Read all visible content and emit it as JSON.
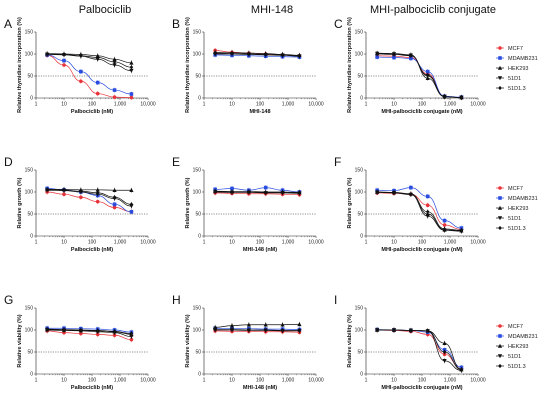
{
  "column_titles": [
    "Palbociclib",
    "MHI-148",
    "MHI-palbociclib conjugate"
  ],
  "legend": [
    {
      "label": "MCF7",
      "color": "#e8333a",
      "marker": "circle"
    },
    {
      "label": "MDAMB231",
      "color": "#2a4de0",
      "marker": "square"
    },
    {
      "label": "HEK293",
      "color": "#111111",
      "marker": "triangle-up"
    },
    {
      "label": "51D1",
      "color": "#111111",
      "marker": "triangle-down"
    },
    {
      "label": "51D1.3",
      "color": "#111111",
      "marker": "diamond"
    }
  ],
  "chart_data": [
    {
      "panel": "A",
      "type": "line",
      "xlabel": "Palbociclib (nM)",
      "ylabel": "Relative thymidine incorporation (%)",
      "xscale": "log",
      "xlim": [
        1,
        10000
      ],
      "ylim": [
        0,
        150
      ],
      "xticks": [
        "1",
        "10",
        "100",
        "1,000",
        "10,000"
      ],
      "yticks": [
        "0",
        "50",
        "100",
        "150"
      ],
      "reference_line": 50,
      "x": [
        2.5,
        10,
        40,
        160,
        640,
        2560
      ],
      "series": [
        {
          "name": "MCF7",
          "values": [
            97,
            75,
            38,
            10,
            2,
            1
          ]
        },
        {
          "name": "MDAMB231",
          "values": [
            98,
            85,
            60,
            35,
            18,
            9
          ]
        },
        {
          "name": "HEK293",
          "values": [
            101,
            100,
            99,
            96,
            88,
            80
          ]
        },
        {
          "name": "51D1",
          "values": [
            99,
            98,
            95,
            88,
            75,
            62
          ]
        },
        {
          "name": "51D1.3",
          "values": [
            100,
            99,
            96,
            92,
            82,
            70
          ]
        }
      ]
    },
    {
      "panel": "B",
      "type": "line",
      "xlabel": "MHI-148",
      "ylabel": "Relative thymidine incorporation (%)",
      "xscale": "log",
      "xlim": [
        1,
        10000
      ],
      "ylim": [
        0,
        150
      ],
      "xticks": [
        "1",
        "10",
        "100",
        "1,000",
        "10,000"
      ],
      "yticks": [
        "0",
        "50",
        "100",
        "150"
      ],
      "reference_line": 50,
      "x": [
        2.5,
        10,
        40,
        160,
        640,
        2560
      ],
      "series": [
        {
          "name": "MCF7",
          "values": [
            108,
            104,
            102,
            100,
            98,
            96
          ]
        },
        {
          "name": "MDAMB231",
          "values": [
            98,
            97,
            96,
            95,
            94,
            93
          ]
        },
        {
          "name": "HEK293",
          "values": [
            104,
            103,
            102,
            101,
            99,
            97
          ]
        },
        {
          "name": "51D1",
          "values": [
            100,
            100,
            99,
            98,
            97,
            95
          ]
        },
        {
          "name": "51D1.3",
          "values": [
            102,
            101,
            100,
            99,
            98,
            96
          ]
        }
      ]
    },
    {
      "panel": "C",
      "type": "line",
      "xlabel": "MHI-palbociclib conjugate (nM)",
      "ylabel": "Relative thymidine incorporation (%)",
      "xscale": "log",
      "xlim": [
        1,
        10000
      ],
      "ylim": [
        0,
        150
      ],
      "xticks": [
        "1",
        "10",
        "100",
        "1,000",
        "10,000"
      ],
      "yticks": [
        "0",
        "50",
        "100",
        "150"
      ],
      "reference_line": 50,
      "x": [
        2.5,
        10,
        40,
        160,
        640,
        2560
      ],
      "series": [
        {
          "name": "MCF7",
          "values": [
            96,
            95,
            92,
            55,
            3,
            1
          ]
        },
        {
          "name": "MDAMB231",
          "values": [
            93,
            92,
            90,
            60,
            4,
            2
          ]
        },
        {
          "name": "HEK293",
          "values": [
            102,
            101,
            98,
            45,
            3,
            1
          ]
        },
        {
          "name": "51D1",
          "values": [
            101,
            100,
            97,
            50,
            3,
            1
          ]
        },
        {
          "name": "51D1.3",
          "values": [
            100,
            99,
            96,
            52,
            3,
            1
          ]
        }
      ]
    },
    {
      "panel": "D",
      "type": "line",
      "xlabel": "Palbociclib (nM)",
      "ylabel": "Relative growth (%)",
      "xscale": "log",
      "xlim": [
        1,
        10000
      ],
      "ylim": [
        0,
        150
      ],
      "xticks": [
        "1",
        "10",
        "100",
        "1,000",
        "10,000"
      ],
      "yticks": [
        "0",
        "50",
        "100",
        "150"
      ],
      "reference_line": 50,
      "x": [
        2.5,
        10,
        40,
        160,
        640,
        2560
      ],
      "series": [
        {
          "name": "MCF7",
          "values": [
            100,
            95,
            88,
            78,
            65,
            55
          ]
        },
        {
          "name": "MDAMB231",
          "values": [
            108,
            105,
            100,
            92,
            72,
            55
          ]
        },
        {
          "name": "HEK293",
          "values": [
            106,
            106,
            105,
            105,
            104,
            104
          ]
        },
        {
          "name": "51D1",
          "values": [
            104,
            103,
            100,
            95,
            85,
            68
          ]
        },
        {
          "name": "51D1.3",
          "values": [
            105,
            104,
            102,
            98,
            88,
            72
          ]
        }
      ]
    },
    {
      "panel": "E",
      "type": "line",
      "xlabel": "MHI-148 (nM)",
      "ylabel": "Relative growth (%)",
      "xscale": "log",
      "xlim": [
        1,
        10000
      ],
      "ylim": [
        0,
        150
      ],
      "xticks": [
        "1",
        "10",
        "100",
        "1,000",
        "10,000"
      ],
      "yticks": [
        "0",
        "50",
        "100",
        "150"
      ],
      "reference_line": 50,
      "x": [
        2.5,
        10,
        40,
        160,
        640,
        2560
      ],
      "series": [
        {
          "name": "MCF7",
          "values": [
            98,
            97,
            96,
            96,
            95,
            94
          ]
        },
        {
          "name": "MDAMB231",
          "values": [
            106,
            108,
            104,
            110,
            104,
            100
          ]
        },
        {
          "name": "HEK293",
          "values": [
            102,
            101,
            101,
            100,
            100,
            99
          ]
        },
        {
          "name": "51D1",
          "values": [
            100,
            99,
            99,
            98,
            98,
            97
          ]
        },
        {
          "name": "51D1.3",
          "values": [
            101,
            100,
            100,
            99,
            99,
            98
          ]
        }
      ]
    },
    {
      "panel": "F",
      "type": "line",
      "xlabel": "MHI-palbociclib conjugate (nM)",
      "ylabel": "Relative growth (%)",
      "xscale": "log",
      "xlim": [
        1,
        10000
      ],
      "ylim": [
        0,
        150
      ],
      "xticks": [
        "1",
        "10",
        "100",
        "1,000",
        "10,000"
      ],
      "yticks": [
        "0",
        "50",
        "100",
        "150"
      ],
      "reference_line": 50,
      "x": [
        2.5,
        10,
        40,
        160,
        640,
        2560
      ],
      "series": [
        {
          "name": "MCF7",
          "values": [
            98,
            97,
            95,
            70,
            25,
            15
          ]
        },
        {
          "name": "MDAMB231",
          "values": [
            104,
            103,
            110,
            90,
            35,
            18
          ]
        },
        {
          "name": "HEK293",
          "values": [
            100,
            99,
            96,
            50,
            14,
            12
          ]
        },
        {
          "name": "51D1",
          "values": [
            99,
            98,
            94,
            45,
            13,
            11
          ]
        },
        {
          "name": "51D1.3",
          "values": [
            100,
            99,
            95,
            55,
            16,
            13
          ]
        }
      ]
    },
    {
      "panel": "G",
      "type": "line",
      "xlabel": "Palbociclib (nM)",
      "ylabel": "Relative viability (%)",
      "xscale": "log",
      "xlim": [
        1,
        10000
      ],
      "ylim": [
        0,
        150
      ],
      "xticks": [
        "1",
        "10",
        "100",
        "1,000",
        "10,000"
      ],
      "yticks": [
        "0",
        "50",
        "100",
        "150"
      ],
      "reference_line": 50,
      "x": [
        2.5,
        10,
        40,
        160,
        640,
        2560
      ],
      "series": [
        {
          "name": "MCF7",
          "values": [
            98,
            94,
            92,
            90,
            88,
            78
          ]
        },
        {
          "name": "MDAMB231",
          "values": [
            104,
            104,
            103,
            102,
            100,
            95
          ]
        },
        {
          "name": "HEK293",
          "values": [
            101,
            100,
            99,
            98,
            96,
            90
          ]
        },
        {
          "name": "51D1",
          "values": [
            100,
            99,
            98,
            96,
            94,
            85
          ]
        },
        {
          "name": "51D1.3",
          "values": [
            102,
            101,
            100,
            99,
            97,
            92
          ]
        }
      ]
    },
    {
      "panel": "H",
      "type": "line",
      "xlabel": "MHI-148 (nM)",
      "ylabel": "Relative viability (%)",
      "xscale": "log",
      "xlim": [
        1,
        10000
      ],
      "ylim": [
        0,
        150
      ],
      "xticks": [
        "1",
        "10",
        "100",
        "1,000",
        "10,000"
      ],
      "yticks": [
        "0",
        "50",
        "100",
        "150"
      ],
      "reference_line": 50,
      "x": [
        2.5,
        10,
        40,
        160,
        640,
        2560
      ],
      "series": [
        {
          "name": "MCF7",
          "values": [
            98,
            97,
            97,
            96,
            96,
            95
          ]
        },
        {
          "name": "MDAMB231",
          "values": [
            104,
            103,
            103,
            102,
            102,
            101
          ]
        },
        {
          "name": "HEK293",
          "values": [
            106,
            110,
            112,
            112,
            112,
            113
          ]
        },
        {
          "name": "51D1",
          "values": [
            100,
            100,
            99,
            99,
            98,
            98
          ]
        },
        {
          "name": "51D1.3",
          "values": [
            101,
            101,
            100,
            100,
            99,
            99
          ]
        }
      ]
    },
    {
      "panel": "I",
      "type": "line",
      "xlabel": "MHI-palbociclib conjugate (nM)",
      "ylabel": "Relative viability (%)",
      "xscale": "log",
      "xlim": [
        1,
        10000
      ],
      "ylim": [
        0,
        150
      ],
      "xticks": [
        "1",
        "10",
        "100",
        "1,000",
        "10,000"
      ],
      "yticks": [
        "0",
        "50",
        "100",
        "150"
      ],
      "reference_line": 50,
      "x": [
        2.5,
        10,
        40,
        160,
        640,
        2560
      ],
      "series": [
        {
          "name": "MCF7",
          "values": [
            100,
            99,
            97,
            90,
            45,
            12
          ]
        },
        {
          "name": "MDAMB231",
          "values": [
            101,
            100,
            99,
            95,
            55,
            15
          ]
        },
        {
          "name": "HEK293",
          "values": [
            100,
            100,
            99,
            98,
            70,
            10
          ]
        },
        {
          "name": "51D1",
          "values": [
            100,
            100,
            99,
            98,
            30,
            8
          ]
        },
        {
          "name": "51D1.3",
          "values": [
            100,
            100,
            99,
            98,
            50,
            10
          ]
        }
      ]
    }
  ]
}
